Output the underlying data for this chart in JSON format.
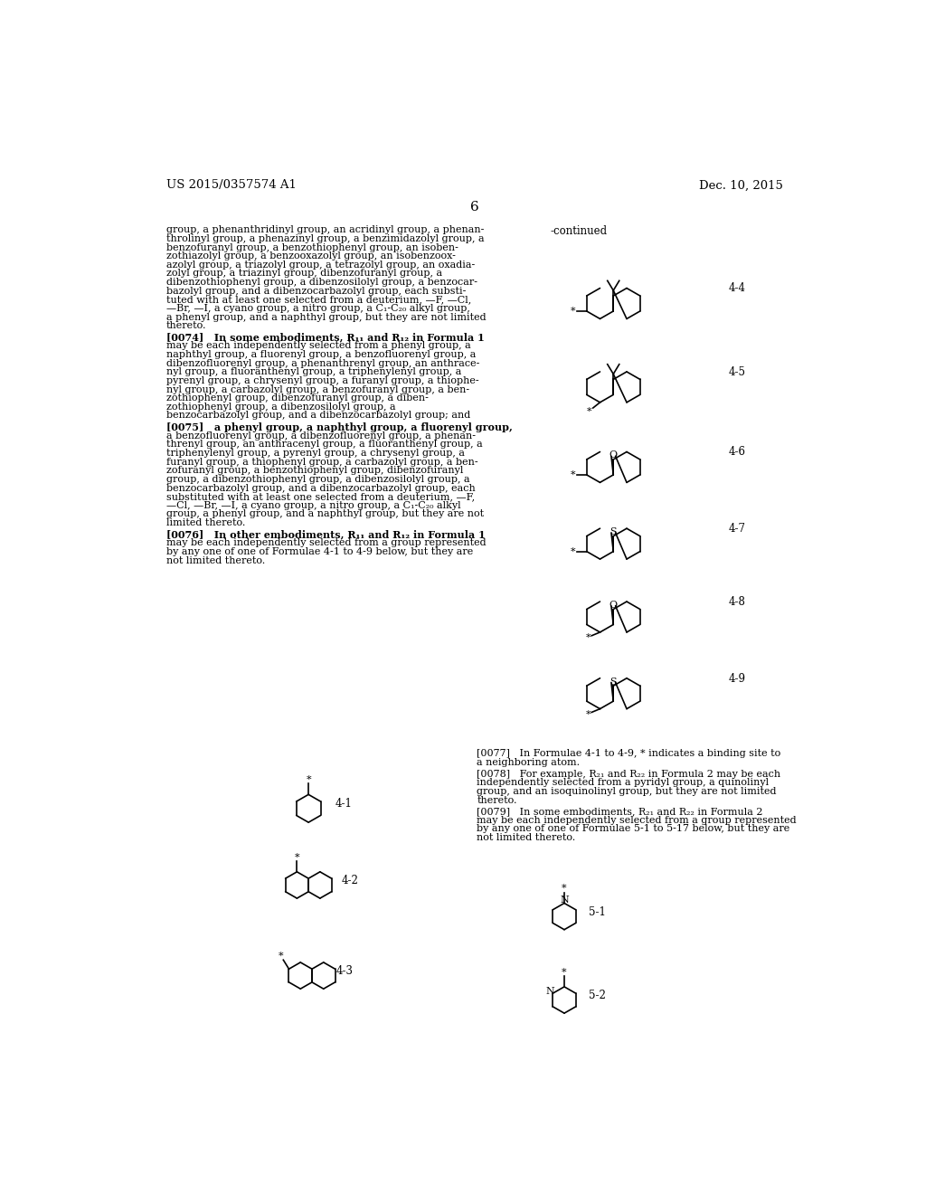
{
  "bg_color": "#ffffff",
  "header_left": "US 2015/0357574 A1",
  "header_right": "Dec. 10, 2015",
  "page_number": "6",
  "text_color": "#000000",
  "line1": "group, a phenanthridinyl group, an acridinyl group, a phenan-",
  "line2": "throlinyl group, a phenazinyl group, a benzimidazolyl group, a",
  "line3": "benzofuranyl group, a benzothiophenyl group, an isoben-",
  "line4": "zothiazolyl group, a benzooxazolyl group, an isobenzoox-",
  "line5": "azolyl group, a triazolyl group, a tetrazolyl group, an oxadia-",
  "line6": "zolyl group, a triazinyl group, dibenzofuranyl group, a",
  "line7": "dibenzothiophenyl group, a dibenzosilolyl group, a benzocar-",
  "line8": "bazolyl group, and a dibenzocarbazolyl group, each substi-",
  "line9": "tuted with at least one selected from a deuterium, —F, —Cl,",
  "line10": "—Br, —I, a cyano group, a nitro group, a C₁-C₂₀ alkyl group,",
  "line11": "a phenyl group, and a naphthyl group, but they are not limited",
  "line12": "thereto.",
  "p74_lines": [
    "[0074]   In some embodiments, R₁₁ and R₁₂ in Formula 1",
    "may be each independently selected from a phenyl group, a",
    "naphthyl group, a fluorenyl group, a benzofluorenyl group, a",
    "dibenzofluorenyl group, a phenanthrenyl group, an anthrace-",
    "nyl group, a fluoranthenyl group, a triphenylenyl group, a",
    "pyrenyl group, a chrysenyl group, a furanyl group, a thiophe-",
    "nyl group, a carbazolyl group, a benzofuranyl group, a ben-",
    "zothiophenyl group, dibenzofuranyl group, a diben-",
    "zothiophenyl group, a dibenzosilolyl group, a",
    "benzocarbazolyl group, and a dibenzocarbazolyl group; and"
  ],
  "p75_lines": [
    "[0075]   a phenyl group, a naphthyl group, a fluorenyl group,",
    "a benzofluorenyl group, a dibenzofluorenyl group, a phenan-",
    "threnyl group, an anthracenyl group, a fluoranthenyl group, a",
    "triphenylenyl group, a pyrenyl group, a chrysenyl group, a",
    "furanyl group, a thiophenyl group, a carbazolyl group, a ben-",
    "zofuranyl group, a benzothiophenyl group, dibenzofuranyl",
    "group, a dibenzothiophenyl group, a dibenzosilolyl group, a",
    "benzocarbazolyl group, and a dibenzocarbazolyl group, each",
    "substituted with at least one selected from a deuterium, —F,",
    "—Cl, —Br, —I, a cyano group, a nitro group, a C₁-C₂₀ alkyl",
    "group, a phenyl group, and a naphthyl group, but they are not",
    "limited thereto."
  ],
  "p76_lines": [
    "[0076]   In other embodiments, R₁₁ and R₁₂ in Formula 1",
    "may be each independently selected from a group represented",
    "by any one of one of Formulae 4-1 to 4-9 below, but they are",
    "not limited thereto."
  ],
  "p77_lines": [
    "[0077]   In Formulae 4-1 to 4-9, * indicates a binding site to",
    "a neighboring atom."
  ],
  "p78_lines": [
    "[0078]   For example, R₂₁ and R₂₂ in Formula 2 may be each",
    "independently selected from a pyridyl group, a quinolinyl",
    "group, and an isoquinolinyl group, but they are not limited",
    "thereto."
  ],
  "p79_lines": [
    "[0079]   In some embodiments, R₂₁ and R₂₂ in Formula 2",
    "may be each independently selected from a group represented",
    "by any one of one of Formulae 5-1 to 5-17 below, but they are",
    "not limited thereto."
  ]
}
